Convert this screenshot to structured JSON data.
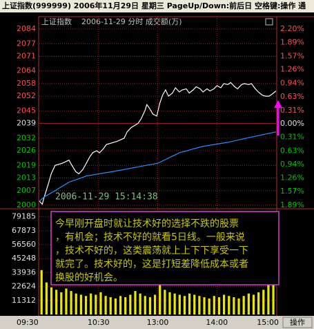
{
  "chart_data": {
    "type": "line",
    "title": "上证指数(999999)  2006年11月29日 星期三  PageUp/Down:前后日 空格键:操作 通",
    "subtitle": "上证指数",
    "header": "2006-11-29 分时 成交额(万)",
    "annotation": "2006-11-29 15:14:38",
    "note_lines": [
      "今早刚开盘时就让技术好的选择不跌的股票",
      "，有机会；技术不好的就看5日线。一般来说",
      "，技术不好的，这类震荡就上上下下享受一下",
      "就完了。技术好的，这是打短差降低成本或者",
      "换股的好机会。"
    ],
    "button": "操作",
    "xlim": [
      0,
      240
    ],
    "xticks": [
      {
        "value": 0,
        "label": "09:30"
      },
      {
        "value": 60,
        "label": "10:30"
      },
      {
        "value": 120,
        "label": "13:00"
      },
      {
        "value": 180,
        "label": "14:00"
      },
      {
        "value": 240,
        "label": "15:00"
      }
    ],
    "ylim": [
      2000,
      2084
    ],
    "yticks": [
      2084,
      2077,
      2071,
      2064,
      2058,
      2052,
      2045,
      2039,
      2032,
      2026,
      2019,
      2013,
      2007,
      2000
    ],
    "y2lim": [
      -1.89,
      2.2
    ],
    "y2ticks": [
      {
        "value": 2.2,
        "label": "2.20%"
      },
      {
        "value": 1.89,
        "label": "1.89%"
      },
      {
        "value": 1.57,
        "label": "1.57%"
      },
      {
        "value": 1.26,
        "label": "1.26%"
      },
      {
        "value": 0.94,
        "label": "0.94%"
      },
      {
        "value": 0.63,
        "label": "0.63%"
      },
      {
        "value": 0.31,
        "label": "0.31%"
      },
      {
        "value": 0,
        "label": "0.00%"
      },
      {
        "value": -0.31,
        "label": "0.31%"
      },
      {
        "value": -0.63,
        "label": "0.63%"
      },
      {
        "value": -0.94,
        "label": "0.94%"
      },
      {
        "value": -1.26,
        "label": "1.26%"
      },
      {
        "value": -1.57,
        "label": "1.57%"
      },
      {
        "value": -1.89,
        "label": "1.89%"
      }
    ],
    "up_color": "#ff5050",
    "down_color": "#00c800",
    "flat_color": "#e0e0e0",
    "grid": true,
    "series": [
      {
        "color": "#ffffff",
        "x": [
          0,
          3,
          5,
          9,
          12,
          16,
          23,
          30,
          33,
          37,
          40,
          44,
          47,
          51,
          54,
          58,
          61,
          65,
          68,
          72,
          79,
          86,
          89,
          93,
          100,
          103,
          107,
          109,
          112,
          115,
          119,
          122,
          125,
          128,
          131,
          135,
          138,
          142,
          145,
          149,
          152,
          156,
          159,
          163,
          166,
          170,
          173,
          177,
          180,
          184,
          187,
          191,
          194,
          198,
          201,
          205,
          208,
          212,
          215,
          219,
          222,
          226,
          229,
          233,
          236,
          240
        ],
        "values": [
          2002,
          2000.5,
          2004,
          2010,
          2015,
          2019,
          2020,
          2021.5,
          2019,
          2016,
          2015,
          2017,
          2019.5,
          2023,
          2025,
          2026,
          2025,
          2027,
          2029,
          2029.5,
          2030.5,
          2032,
          2035,
          2037,
          2039,
          2041,
          2045,
          2048,
          2046,
          2043.5,
          2042.5,
          2048.5,
          2052.5,
          2055,
          2052,
          2053.5,
          2056,
          2054,
          2055,
          2055.5,
          2053.5,
          2055,
          2056.5,
          2055.5,
          2054,
          2055.5,
          2054.5,
          2055.5,
          2057,
          2056,
          2058,
          2057.5,
          2058.5,
          2056.5,
          2055.5,
          2057.5,
          2058,
          2057.5,
          2058,
          2055.5,
          2054,
          2052.5,
          2052,
          2052,
          2053,
          2054.5
        ]
      },
      {
        "color": "#2a8cff",
        "x": [
          0,
          5,
          16,
          30,
          48,
          80,
          108,
          120,
          142,
          165,
          191,
          215,
          240
        ],
        "values": [
          2002,
          2004,
          2007,
          2011,
          2014,
          2016.5,
          2019,
          2020,
          2025,
          2028,
          2030,
          2032.5,
          2035
        ]
      }
    ],
    "volume": {
      "color": "#e8e800",
      "ylim": [
        0,
        86240
      ],
      "yticks": [
        79185,
        67873,
        56560,
        45248,
        33936,
        22624,
        11312
      ],
      "x": [
        0,
        5,
        10,
        15,
        20,
        25,
        30,
        35,
        40,
        45,
        50,
        55,
        60,
        65,
        70,
        75,
        80,
        85,
        90,
        95,
        100,
        105,
        110,
        115,
        120,
        125,
        130,
        135,
        140,
        145,
        150,
        155,
        160,
        165,
        170,
        175,
        180,
        185,
        190,
        195,
        200,
        205,
        210,
        215,
        220,
        225,
        230,
        235
      ],
      "values": [
        36000,
        26000,
        22000,
        20000,
        18000,
        21000,
        19000,
        17000,
        16000,
        15000,
        17000,
        16000,
        18000,
        15000,
        14000,
        13000,
        15000,
        14000,
        16000,
        19000,
        17000,
        15000,
        14000,
        16000,
        25000,
        20000,
        18000,
        17000,
        16000,
        15000,
        17000,
        16000,
        15000,
        14000,
        13000,
        15000,
        14000,
        16000,
        15000,
        14000,
        13000,
        15000,
        17000,
        16000,
        18000,
        20000,
        24000,
        30000
      ]
    }
  }
}
